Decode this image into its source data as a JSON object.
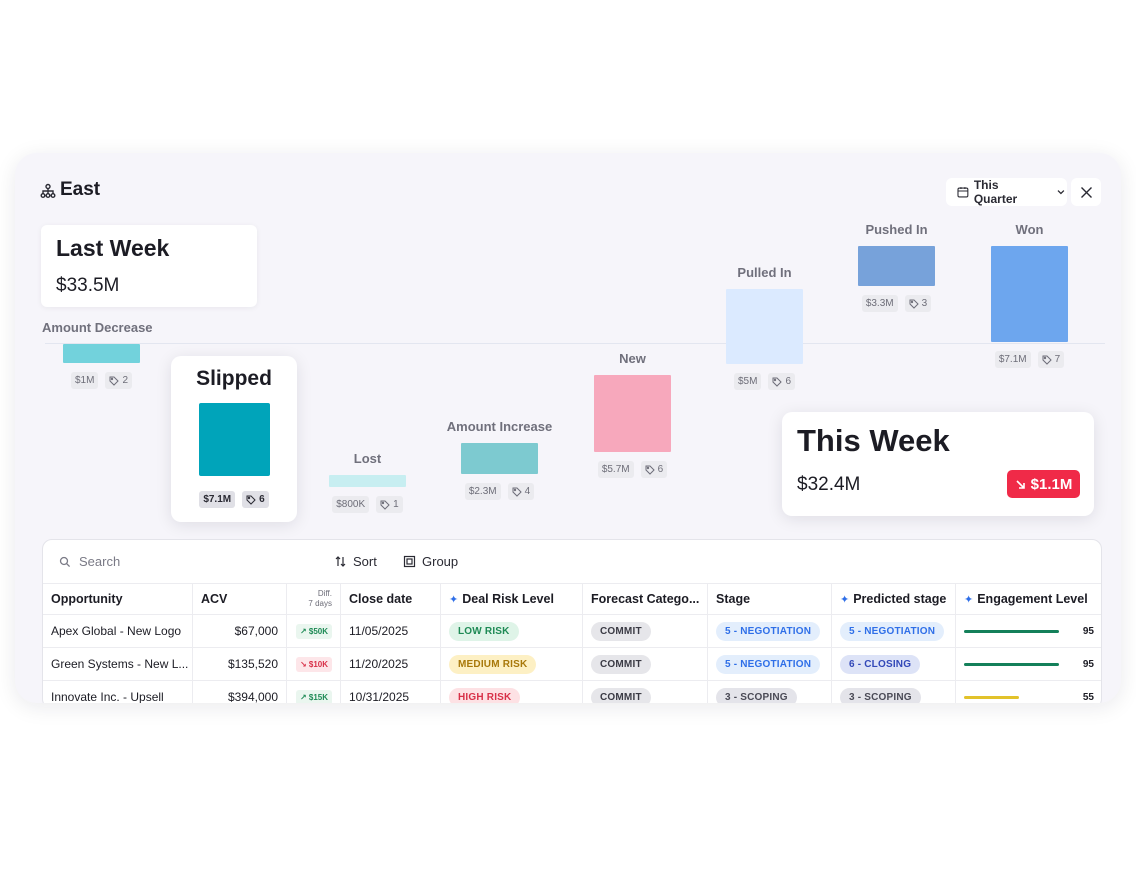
{
  "header": {
    "title": "East",
    "period": "This Quarter"
  },
  "colors": {
    "accent": "#2f6fe8",
    "decrease_red": "#f02a48",
    "panel_bg": "#f6f5fa"
  },
  "summary": {
    "last_week": {
      "title": "Last Week",
      "value": "$33.5M"
    },
    "this_week": {
      "title": "This Week",
      "value": "$32.4M",
      "delta": "$1.1M",
      "delta_icon": "arrow-down-right-icon"
    }
  },
  "chart_data": {
    "type": "bar",
    "categories": [
      "Amount Decrease",
      "Slipped",
      "Lost",
      "Amount Increase",
      "New",
      "Pulled In",
      "Pushed In",
      "Won"
    ],
    "values": [
      1.0,
      7.1,
      0.8,
      2.3,
      5.7,
      5.0,
      3.3,
      7.1
    ],
    "units": "$M",
    "amount_labels": [
      "$1M",
      "$7.1M",
      "$800K",
      "$2.3M",
      "$5.7M",
      "$5M",
      "$3.3M",
      "$7.1M"
    ],
    "deal_counts": [
      2,
      6,
      1,
      4,
      6,
      6,
      3,
      7
    ],
    "colors": [
      "#72d2dc",
      "#00a4ba",
      "#c7eef1",
      "#7dcad0",
      "#f7a8bc",
      "#dbeaff",
      "#77a2da",
      "#6da6ee"
    ],
    "highlighted": "Slipped"
  },
  "toolbar": {
    "search_placeholder": "Search",
    "sort_label": "Sort",
    "group_label": "Group"
  },
  "table": {
    "columns": [
      "Opportunity",
      "ACV",
      "Diff.",
      "Close date",
      "Deal Risk Level",
      "Forecast Catego...",
      "Stage",
      "Predicted stage",
      "Engagement Level"
    ],
    "diff_sublabel": "7 days",
    "rows": [
      {
        "opportunity": "Apex Global - New Logo",
        "acv": "$67,000",
        "diff": "$50K",
        "diff_dir": "up",
        "close_date": "11/05/2025",
        "risk": "LOW RISK",
        "risk_level": "low",
        "forecast": "COMMIT",
        "stage": "5 - NEGOTIATION",
        "predicted": "5 - NEGOTIATION",
        "predicted_level": "same",
        "engagement": 95
      },
      {
        "opportunity": "Green Systems - New L...",
        "acv": "$135,520",
        "diff": "$10K",
        "diff_dir": "down",
        "close_date": "11/20/2025",
        "risk": "MEDIUM RISK",
        "risk_level": "medium",
        "forecast": "COMMIT",
        "stage": "5 - NEGOTIATION",
        "predicted": "6 - CLOSING",
        "predicted_level": "up",
        "engagement": 95
      },
      {
        "opportunity": "Innovate Inc. - Upsell",
        "acv": "$394,000",
        "diff": "$15K",
        "diff_dir": "up",
        "close_date": "10/31/2025",
        "risk": "HIGH RISK",
        "risk_level": "high",
        "forecast": "COMMIT",
        "stage": "3 - SCOPING",
        "predicted": "3 - SCOPING",
        "predicted_level": "scoping",
        "engagement": 55
      }
    ]
  }
}
